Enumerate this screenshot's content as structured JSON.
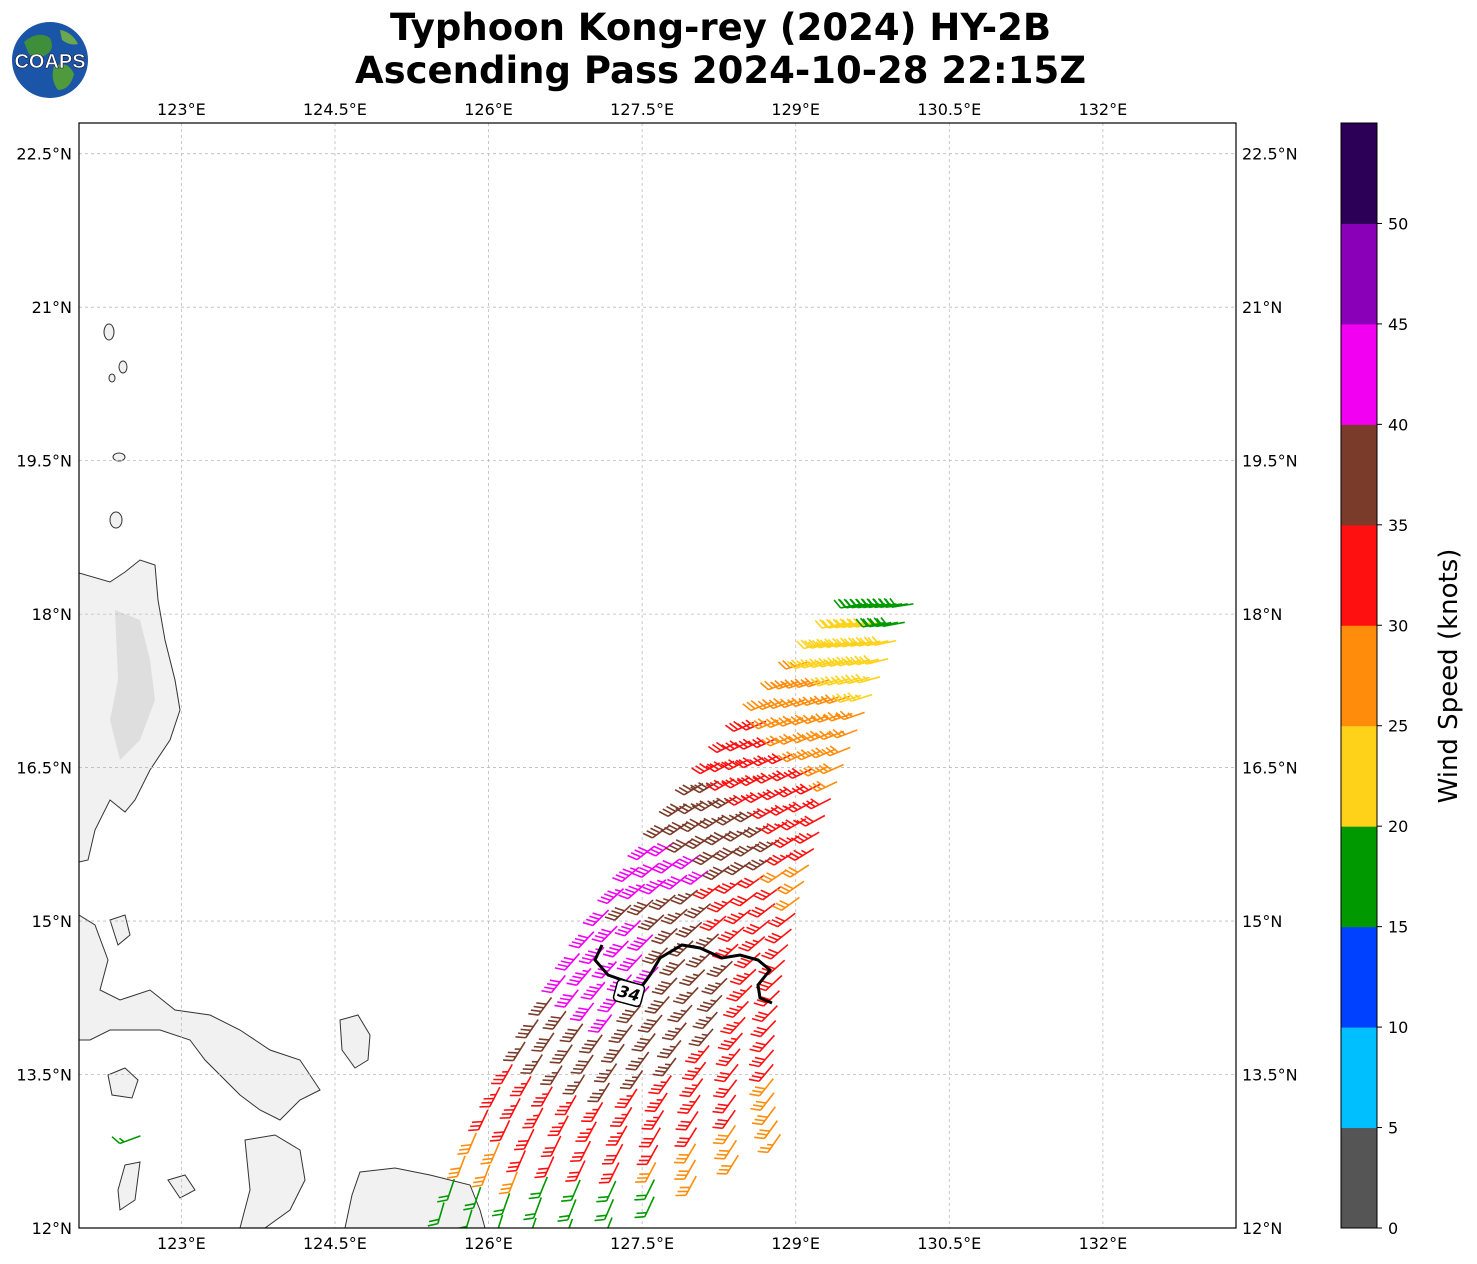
{
  "title": {
    "line1": "Typhoon Kong-rey (2024) HY-2B",
    "line2": "Ascending Pass 2024-10-28 22:15Z"
  },
  "logo": {
    "text": "COAPS",
    "icon": "globe-logo-icon"
  },
  "map": {
    "lon_range": [
      122.0,
      133.3
    ],
    "lat_range": [
      12.0,
      22.8
    ],
    "lon_ticks": [
      "123°E",
      "124.5°E",
      "126°E",
      "127.5°E",
      "129°E",
      "130.5°E",
      "132°E"
    ],
    "lon_values": [
      123,
      124.5,
      126,
      127.5,
      129,
      130.5,
      132
    ],
    "lat_ticks": [
      "12°N",
      "13.5°N",
      "15°N",
      "16.5°N",
      "18°N",
      "19.5°N",
      "21°N",
      "22.5°N"
    ],
    "lat_values": [
      12,
      13.5,
      15,
      16.5,
      18,
      19.5,
      21,
      22.5
    ],
    "grid": true,
    "contour_label": "34"
  },
  "colorbar": {
    "label": "Wind Speed (knots)",
    "tick_labels": [
      "0",
      "5",
      "10",
      "15",
      "20",
      "25",
      "30",
      "35",
      "40",
      "45",
      "50"
    ],
    "colors": [
      "#555555",
      "#00bfff",
      "#0040ff",
      "#009900",
      "#ffd21a",
      "#ff8c0a",
      "#ff1010",
      "#7a3b2a",
      "#f200f2",
      "#8a00b8",
      "#2d0057"
    ]
  },
  "legend_colors": {
    "land": "#eeeeee",
    "coast": "#333333",
    "grid": "#bbbbbb",
    "radius_contour": "#000000"
  }
}
